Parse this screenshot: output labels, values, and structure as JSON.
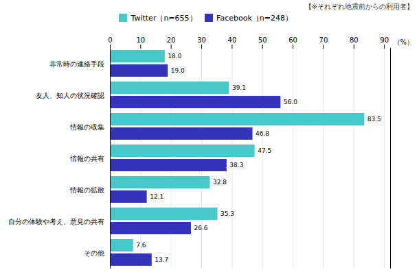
{
  "chart_data": {
    "type": "bar",
    "orientation": "horizontal",
    "categories": [
      "非常時の連絡手段",
      "友人、知人の状況確認",
      "情報の収集",
      "情報の共有",
      "情報の拡散",
      "自分の体験や考え、意見の共有",
      "その他"
    ],
    "series": [
      {
        "name": "Twitter（n=655）",
        "color": "#48C9C9",
        "values": [
          18.0,
          39.1,
          83.5,
          47.5,
          32.8,
          35.3,
          7.6
        ],
        "value_labels": [
          "18.0",
          "39.1",
          "83.5",
          "47.5",
          "32.8",
          "35.3",
          "7.6"
        ]
      },
      {
        "name": "Facebook（n=248）",
        "color": "#3333BB",
        "values": [
          19.0,
          56.0,
          46.8,
          38.3,
          12.1,
          26.6,
          13.7
        ],
        "value_labels": [
          "19.0",
          "56.0",
          "46.8",
          "38.3",
          "12.1",
          "26.6",
          "13.7"
        ]
      }
    ],
    "xlim": [
      0,
      92
    ],
    "xticks": [
      0,
      10,
      20,
      30,
      40,
      50,
      60,
      70,
      80,
      90
    ],
    "grid": true,
    "data_labels": true,
    "legend": "top",
    "annotations": [
      "（%）",
      "【※それぞれ地震前からの利用者】"
    ]
  }
}
